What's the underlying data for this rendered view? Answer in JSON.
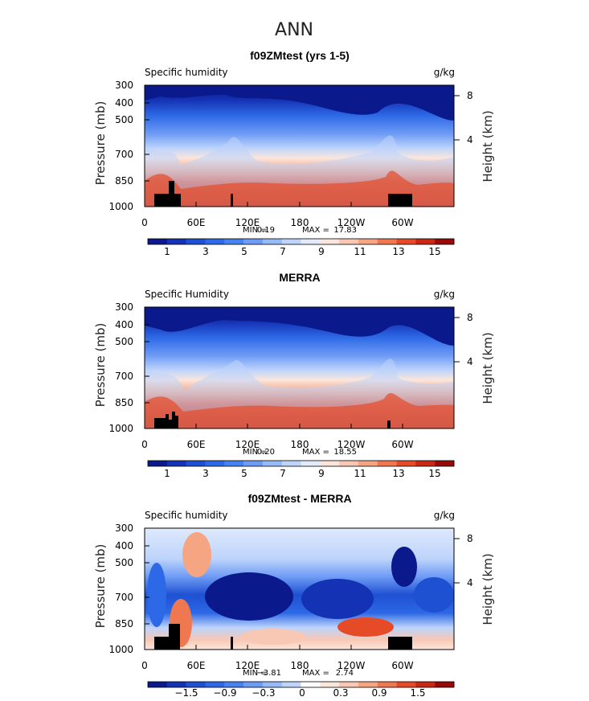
{
  "figure": {
    "season": "ANN"
  },
  "chart_data": [
    {
      "type": "heatmap",
      "title": "f09ZMtest (yrs 1-5)",
      "left_label": "Specific humidity",
      "units": "g/kg",
      "ylabel": "Pressure (mb)",
      "ylabel_right": "Height (km)",
      "yticks": [
        "300",
        "400",
        "500",
        "700",
        "850",
        "1000"
      ],
      "yticks_right": [
        "8",
        "4"
      ],
      "xticks": [
        "0",
        "60E",
        "120E",
        "180",
        "120W",
        "60W"
      ],
      "min_label": "MIN =",
      "min_value": "0.19",
      "max_label": "MAX =",
      "max_value": "17.83",
      "colorbar_labels": [
        "1",
        "3",
        "5",
        "7",
        "9",
        "11",
        "13",
        "15"
      ],
      "colorbar_colors": [
        "#0a1a8c",
        "#1432b4",
        "#1e50d2",
        "#2d69e6",
        "#4682f0",
        "#6e9bf5",
        "#96b9f8",
        "#bed4fb",
        "#e1ebfc",
        "#fbe6dc",
        "#f8c8b4",
        "#f5a582",
        "#f07850",
        "#e64b28",
        "#c82814",
        "#960a0a"
      ],
      "xlim": [
        0,
        360
      ],
      "ylim": [
        1000,
        300
      ]
    },
    {
      "type": "heatmap",
      "title": "MERRA",
      "left_label": "Specific Humidity",
      "units": "g/kg",
      "ylabel": "Pressure (mb)",
      "ylabel_right": "Height (km)",
      "yticks": [
        "300",
        "400",
        "500",
        "700",
        "850",
        "1000"
      ],
      "yticks_right": [
        "8",
        "4"
      ],
      "xticks": [
        "0",
        "60E",
        "120E",
        "180",
        "120W",
        "60W"
      ],
      "min_label": "MIN =",
      "min_value": "0.20",
      "max_label": "MAX =",
      "max_value": "18.55",
      "colorbar_labels": [
        "1",
        "3",
        "5",
        "7",
        "9",
        "11",
        "13",
        "15"
      ],
      "colorbar_colors": [
        "#0a1a8c",
        "#1432b4",
        "#1e50d2",
        "#2d69e6",
        "#4682f0",
        "#6e9bf5",
        "#96b9f8",
        "#bed4fb",
        "#e1ebfc",
        "#fbe6dc",
        "#f8c8b4",
        "#f5a582",
        "#f07850",
        "#e64b28",
        "#c82814",
        "#960a0a"
      ],
      "xlim": [
        0,
        360
      ],
      "ylim": [
        1000,
        300
      ]
    },
    {
      "type": "heatmap",
      "title": "f09ZMtest - MERRA",
      "left_label": "Specific humidity",
      "units": "g/kg",
      "ylabel": "Pressure (mb)",
      "ylabel_right": "Height (km)",
      "yticks": [
        "300",
        "400",
        "500",
        "700",
        "850",
        "1000"
      ],
      "yticks_right": [
        "8",
        "4"
      ],
      "xticks": [
        "0",
        "60E",
        "120E",
        "180",
        "120W",
        "60W"
      ],
      "min_label": "MIN =",
      "min_value": "−3.81",
      "max_label": "MAX =",
      "max_value": "2.74",
      "colorbar_labels": [
        "−1.5",
        "−0.9",
        "−0.3",
        "0",
        "0.3",
        "0.9",
        "1.5"
      ],
      "colorbar_colors": [
        "#0a1a8c",
        "#1432b4",
        "#1e50d2",
        "#2d69e6",
        "#4682f0",
        "#6e9bf5",
        "#96b9f8",
        "#bed4fb",
        "#ffffff",
        "#fbe6dc",
        "#f8c8b4",
        "#f5a582",
        "#f07850",
        "#e64b28",
        "#c82814",
        "#960a0a"
      ],
      "xlim": [
        0,
        360
      ],
      "ylim": [
        1000,
        300
      ]
    }
  ]
}
